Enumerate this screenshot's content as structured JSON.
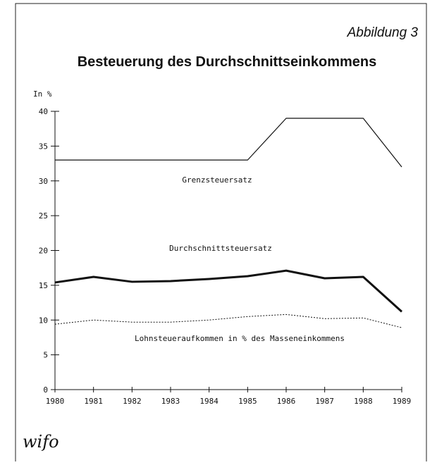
{
  "chart_data": {
    "type": "line",
    "subtitle": "Abbildung 3",
    "title": "Besteuerung des Durchschnittseinkommens",
    "y_label": "In %",
    "logo": "wifo",
    "x": [
      1980,
      1981,
      1982,
      1983,
      1984,
      1985,
      1986,
      1987,
      1988,
      1989
    ],
    "xlim": [
      1980,
      1989
    ],
    "xticks": [
      1980,
      1981,
      1982,
      1983,
      1984,
      1985,
      1986,
      1987,
      1988,
      1989
    ],
    "ylim": [
      0,
      40
    ],
    "yticks": [
      0,
      5,
      10,
      15,
      20,
      25,
      30,
      35,
      40
    ],
    "grid": false,
    "series": [
      {
        "name": "Grenzsteuersatz",
        "color": "#111111",
        "style": "solid",
        "width": 1.2,
        "values": [
          33,
          33,
          33,
          33,
          33,
          33,
          39,
          39,
          39,
          32
        ]
      },
      {
        "name": "Durchschnittsteuersatz",
        "color": "#111111",
        "style": "solid",
        "width": 3,
        "values": [
          15.4,
          16.2,
          15.5,
          15.6,
          15.9,
          16.3,
          17.1,
          16,
          16.2,
          11.2
        ]
      },
      {
        "name": "Lohnsteueraufkommen in % des Masseneinkommens",
        "color": "#111111",
        "style": "dotted",
        "width": 1,
        "values": [
          9.4,
          10,
          9.7,
          9.7,
          10,
          10.5,
          10.8,
          10.2,
          10.3,
          8.9
        ]
      }
    ]
  }
}
